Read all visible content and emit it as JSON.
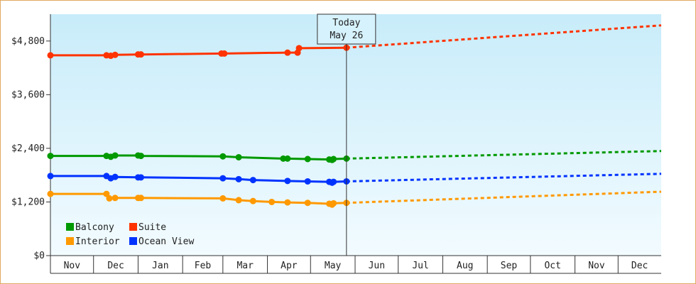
{
  "chart_data": {
    "type": "line",
    "title": "",
    "xlabel": "",
    "ylabel": "",
    "ylim": [
      0,
      5400
    ],
    "yticks": [
      {
        "value": 0,
        "label": "$0"
      },
      {
        "value": 1200,
        "label": "$1,200"
      },
      {
        "value": 2400,
        "label": "$2,400"
      },
      {
        "value": 3600,
        "label": "$3,600"
      },
      {
        "value": 4800,
        "label": "$4,800"
      }
    ],
    "x_start": "2016-11-01",
    "x_end": "2017-12-31",
    "months": [
      {
        "label": "Nov",
        "start": "2016-11-01",
        "end": "2016-12-01"
      },
      {
        "label": "Dec",
        "start": "2016-12-01",
        "end": "2017-01-01"
      },
      {
        "label": "Jan",
        "start": "2017-01-01",
        "end": "2017-02-01"
      },
      {
        "label": "Feb",
        "start": "2017-02-01",
        "end": "2017-03-01"
      },
      {
        "label": "Mar",
        "start": "2017-03-01",
        "end": "2017-04-01"
      },
      {
        "label": "Apr",
        "start": "2017-04-01",
        "end": "2017-05-01"
      },
      {
        "label": "May",
        "start": "2017-05-01",
        "end": "2017-06-01"
      },
      {
        "label": "Jun",
        "start": "2017-06-01",
        "end": "2017-07-01"
      },
      {
        "label": "Jul",
        "start": "2017-07-01",
        "end": "2017-08-01"
      },
      {
        "label": "Aug",
        "start": "2017-08-01",
        "end": "2017-09-01"
      },
      {
        "label": "Sep",
        "start": "2017-09-01",
        "end": "2017-10-01"
      },
      {
        "label": "Oct",
        "start": "2017-10-01",
        "end": "2017-11-01"
      },
      {
        "label": "Nov",
        "start": "2017-11-01",
        "end": "2017-12-01"
      },
      {
        "label": "Dec",
        "start": "2017-12-01",
        "end": "2017-12-31"
      }
    ],
    "today": {
      "date": "2017-05-26",
      "line1": "Today",
      "line2": "May 26"
    },
    "legend": [
      "Balcony",
      "Suite",
      "Interior",
      "Ocean View"
    ],
    "series": [
      {
        "name": "Suite",
        "color": "#ff3300",
        "points": [
          [
            "2016-11-01",
            4480
          ],
          [
            "2016-12-10",
            4480
          ],
          [
            "2016-12-13",
            4470
          ],
          [
            "2016-12-16",
            4490
          ],
          [
            "2017-01-01",
            4500
          ],
          [
            "2017-01-03",
            4500
          ],
          [
            "2017-02-28",
            4520
          ],
          [
            "2017-03-02",
            4520
          ],
          [
            "2017-04-15",
            4540
          ],
          [
            "2017-04-22",
            4540
          ],
          [
            "2017-04-23",
            4640
          ],
          [
            "2017-05-26",
            4650
          ]
        ],
        "forecast": [
          [
            "2017-05-26",
            4650
          ],
          [
            "2017-12-31",
            5150
          ]
        ]
      },
      {
        "name": "Balcony",
        "color": "#009900",
        "points": [
          [
            "2016-11-01",
            2230
          ],
          [
            "2016-12-10",
            2230
          ],
          [
            "2016-12-13",
            2210
          ],
          [
            "2016-12-16",
            2240
          ],
          [
            "2017-01-01",
            2240
          ],
          [
            "2017-01-03",
            2230
          ],
          [
            "2017-03-01",
            2220
          ],
          [
            "2017-03-12",
            2200
          ],
          [
            "2017-04-12",
            2170
          ],
          [
            "2017-04-15",
            2170
          ],
          [
            "2017-04-29",
            2160
          ],
          [
            "2017-05-14",
            2150
          ],
          [
            "2017-05-16",
            2140
          ],
          [
            "2017-05-17",
            2160
          ],
          [
            "2017-05-26",
            2170
          ]
        ],
        "forecast": [
          [
            "2017-05-26",
            2170
          ],
          [
            "2017-12-31",
            2340
          ]
        ]
      },
      {
        "name": "Ocean View",
        "color": "#0033ff",
        "points": [
          [
            "2016-11-01",
            1780
          ],
          [
            "2016-12-10",
            1780
          ],
          [
            "2016-12-13",
            1730
          ],
          [
            "2016-12-16",
            1760
          ],
          [
            "2017-01-01",
            1750
          ],
          [
            "2017-01-03",
            1750
          ],
          [
            "2017-03-01",
            1730
          ],
          [
            "2017-03-12",
            1710
          ],
          [
            "2017-03-22",
            1690
          ],
          [
            "2017-04-15",
            1670
          ],
          [
            "2017-04-29",
            1660
          ],
          [
            "2017-05-14",
            1650
          ],
          [
            "2017-05-16",
            1630
          ],
          [
            "2017-05-17",
            1650
          ],
          [
            "2017-05-26",
            1660
          ]
        ],
        "forecast": [
          [
            "2017-05-26",
            1660
          ],
          [
            "2017-12-31",
            1830
          ]
        ]
      },
      {
        "name": "Interior",
        "color": "#ff9900",
        "points": [
          [
            "2016-11-01",
            1380
          ],
          [
            "2016-12-10",
            1380
          ],
          [
            "2016-12-12",
            1280
          ],
          [
            "2016-12-16",
            1290
          ],
          [
            "2017-01-01",
            1290
          ],
          [
            "2017-01-03",
            1290
          ],
          [
            "2017-03-01",
            1280
          ],
          [
            "2017-03-12",
            1240
          ],
          [
            "2017-03-22",
            1220
          ],
          [
            "2017-04-04",
            1200
          ],
          [
            "2017-04-15",
            1190
          ],
          [
            "2017-04-29",
            1180
          ],
          [
            "2017-05-14",
            1160
          ],
          [
            "2017-05-16",
            1140
          ],
          [
            "2017-05-17",
            1170
          ],
          [
            "2017-05-26",
            1180
          ]
        ],
        "forecast": [
          [
            "2017-05-26",
            1180
          ],
          [
            "2017-12-31",
            1430
          ]
        ]
      }
    ]
  }
}
